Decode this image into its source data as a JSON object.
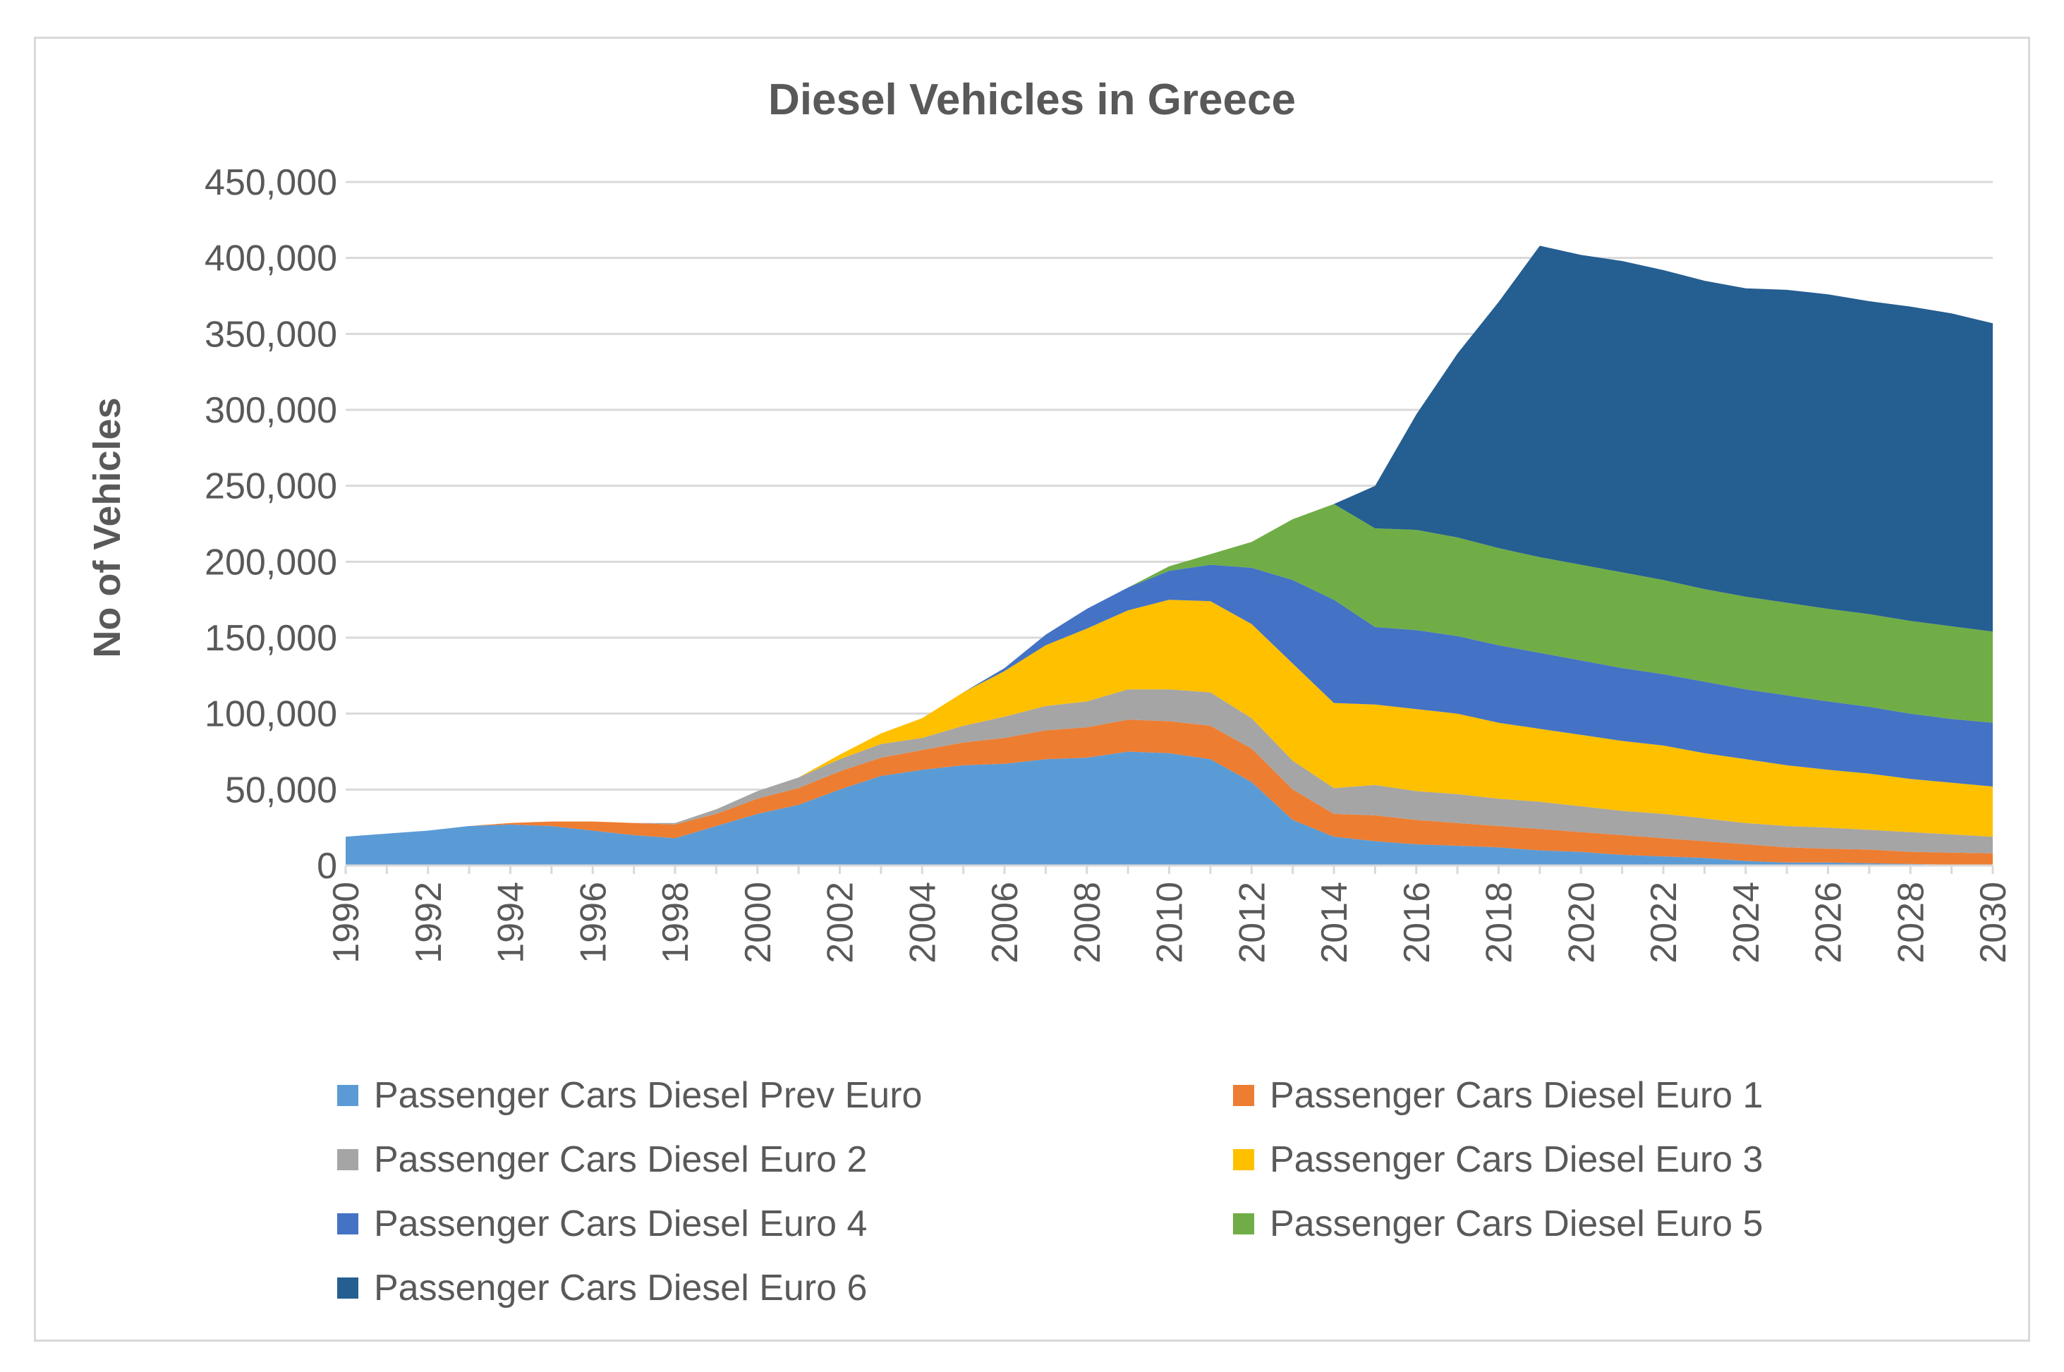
{
  "chart_data": {
    "type": "area",
    "stacked": true,
    "title": "Diesel Vehicles in Greece",
    "xlabel": "",
    "ylabel": "No of Vehicles",
    "ylim": [
      0,
      450000
    ],
    "yticks": [
      0,
      50000,
      100000,
      150000,
      200000,
      250000,
      300000,
      350000,
      400000,
      450000
    ],
    "ytick_labels": [
      "0",
      "50,000",
      "100,000",
      "150,000",
      "200,000",
      "250,000",
      "300,000",
      "350,000",
      "400,000",
      "450,000"
    ],
    "xtick_labels": [
      "1990",
      "1992",
      "1994",
      "1996",
      "1998",
      "2000",
      "2002",
      "2004",
      "2006",
      "2008",
      "2010",
      "2012",
      "2014",
      "2016",
      "2018",
      "2020",
      "2022",
      "2024",
      "2026",
      "2028",
      "2030"
    ],
    "grid": true,
    "legend_position": "bottom",
    "x": [
      1990,
      1991,
      1992,
      1993,
      1994,
      1995,
      1996,
      1997,
      1998,
      1999,
      2000,
      2001,
      2002,
      2003,
      2004,
      2005,
      2006,
      2007,
      2008,
      2009,
      2010,
      2011,
      2012,
      2013,
      2014,
      2015,
      2016,
      2017,
      2018,
      2019,
      2020,
      2021,
      2022,
      2023,
      2024,
      2025,
      2026,
      2027,
      2028,
      2029,
      2030
    ],
    "series": [
      {
        "name": "Passenger Cars Diesel Prev Euro",
        "color": "#5b9bd5",
        "values": [
          19000,
          21000,
          23000,
          26000,
          27000,
          26000,
          23000,
          20000,
          18000,
          26000,
          34000,
          40000,
          50000,
          59000,
          63000,
          66000,
          67000,
          70000,
          71000,
          75000,
          74000,
          70000,
          55000,
          30000,
          19000,
          16000,
          14000,
          13000,
          12000,
          10000,
          9000,
          7000,
          6000,
          5000,
          3000,
          2000,
          2000,
          1500,
          1000,
          500,
          0
        ]
      },
      {
        "name": "Passenger Cars Diesel Euro 1",
        "color": "#ed7d31",
        "values": [
          0,
          0,
          0,
          0,
          1000,
          3000,
          6000,
          8000,
          9000,
          8000,
          10000,
          11000,
          12000,
          12000,
          13000,
          15000,
          17000,
          19000,
          20000,
          21000,
          21000,
          22000,
          22000,
          20000,
          15000,
          17000,
          16000,
          15000,
          14000,
          14000,
          13000,
          13000,
          12000,
          11000,
          11000,
          10000,
          9000,
          9000,
          8000,
          8000,
          8000
        ]
      },
      {
        "name": "Passenger Cars Diesel Euro 2",
        "color": "#a5a5a5",
        "values": [
          0,
          0,
          0,
          0,
          0,
          0,
          0,
          0,
          1000,
          3000,
          5000,
          7000,
          8000,
          9000,
          8000,
          11000,
          14000,
          16000,
          17000,
          20000,
          21000,
          22000,
          20000,
          19000,
          17000,
          20000,
          19000,
          19000,
          18000,
          18000,
          17000,
          16000,
          16000,
          15000,
          14000,
          14000,
          14000,
          13000,
          13000,
          12000,
          11000
        ]
      },
      {
        "name": "Passenger Cars Diesel Euro 3",
        "color": "#ffc000",
        "values": [
          0,
          0,
          0,
          0,
          0,
          0,
          0,
          0,
          0,
          0,
          0,
          0,
          3000,
          7000,
          13000,
          22000,
          30000,
          40000,
          48000,
          52000,
          59000,
          60000,
          62000,
          64000,
          56000,
          53000,
          54000,
          53000,
          50000,
          48000,
          47000,
          46000,
          45000,
          43000,
          42000,
          40000,
          38000,
          37000,
          35000,
          34000,
          33000
        ]
      },
      {
        "name": "Passenger Cars Diesel Euro 4",
        "color": "#4472c4",
        "values": [
          0,
          0,
          0,
          0,
          0,
          0,
          0,
          0,
          0,
          0,
          0,
          0,
          0,
          0,
          0,
          0,
          2000,
          7000,
          13000,
          15000,
          19000,
          24000,
          37000,
          55000,
          68000,
          51000,
          52000,
          51000,
          51000,
          50000,
          49000,
          48000,
          47000,
          47000,
          46000,
          46000,
          45000,
          44000,
          43000,
          42000,
          42000
        ]
      },
      {
        "name": "Passenger Cars Diesel Euro 5",
        "color": "#70ad47",
        "values": [
          0,
          0,
          0,
          0,
          0,
          0,
          0,
          0,
          0,
          0,
          0,
          0,
          0,
          0,
          0,
          0,
          0,
          0,
          0,
          0,
          3000,
          7000,
          17000,
          40000,
          63000,
          65000,
          66000,
          65000,
          64000,
          63000,
          63000,
          63000,
          62000,
          61000,
          61000,
          61000,
          61000,
          61000,
          61000,
          61000,
          60000
        ]
      },
      {
        "name": "Passenger Cars Diesel Euro 6",
        "color": "#255e91",
        "values": [
          0,
          0,
          0,
          0,
          0,
          0,
          0,
          0,
          0,
          0,
          0,
          0,
          0,
          0,
          0,
          0,
          0,
          0,
          0,
          0,
          0,
          0,
          0,
          0,
          0,
          28000,
          76000,
          121000,
          162000,
          205000,
          204000,
          205000,
          204000,
          203000,
          203000,
          206000,
          207000,
          206000,
          207000,
          206000,
          203000
        ]
      }
    ]
  }
}
